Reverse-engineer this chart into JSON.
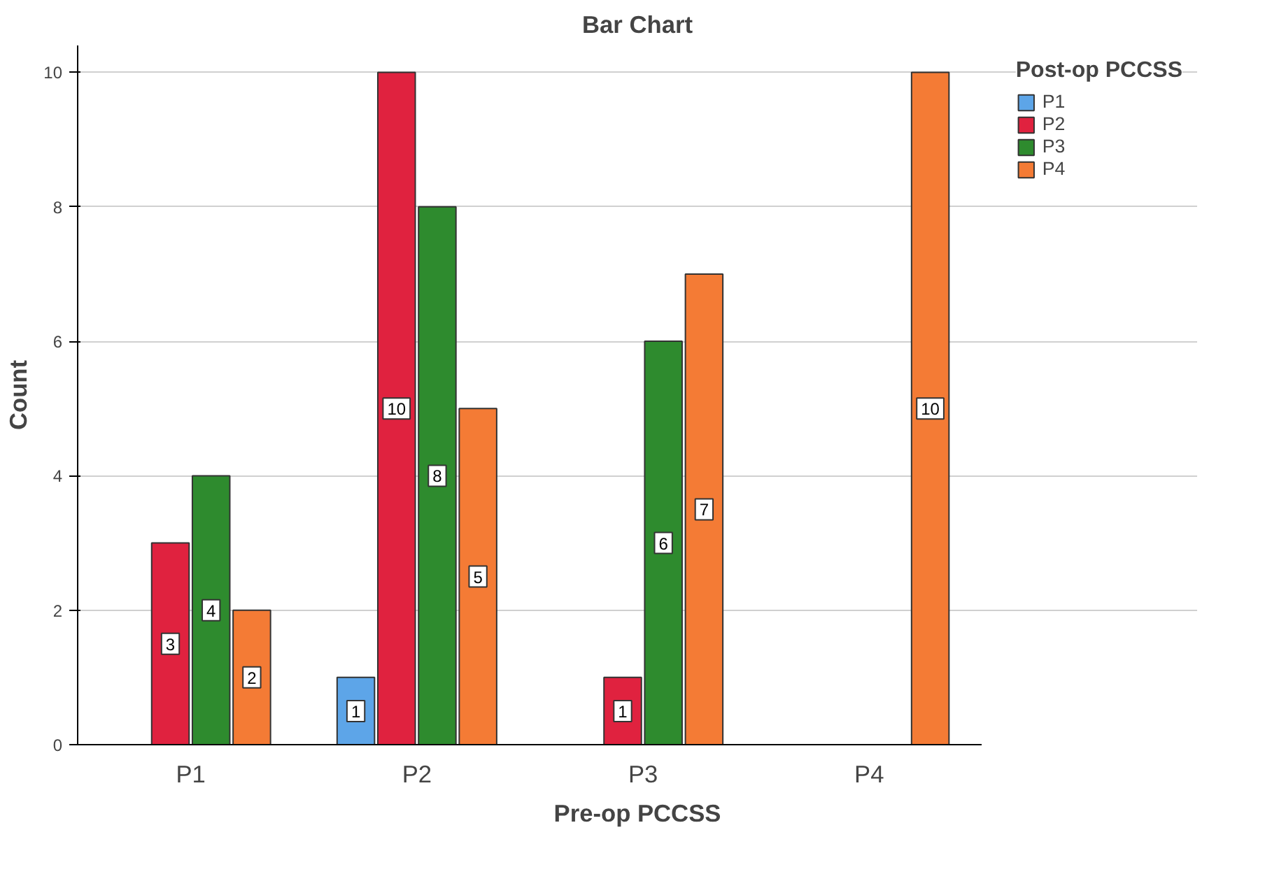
{
  "chart_data": {
    "type": "bar",
    "title": "Bar Chart",
    "xlabel": "Pre-op PCCSS",
    "ylabel": "Count",
    "legend_title": "Post-op PCCSS",
    "categories": [
      "P1",
      "P2",
      "P3",
      "P4"
    ],
    "series": [
      {
        "name": "P1",
        "color": "#5da5e8",
        "values": [
          null,
          1,
          null,
          null
        ]
      },
      {
        "name": "P2",
        "color": "#e0223f",
        "values": [
          3,
          10,
          1,
          null
        ]
      },
      {
        "name": "P3",
        "color": "#2e8b2e",
        "values": [
          4,
          8,
          6,
          null
        ]
      },
      {
        "name": "P4",
        "color": "#f47b35",
        "values": [
          2,
          5,
          7,
          10
        ]
      }
    ],
    "ylim": [
      0,
      10.4
    ],
    "yticks": [
      0,
      2,
      4,
      6,
      8,
      10
    ],
    "grid": "y",
    "legend": "right",
    "data_labels": true
  }
}
